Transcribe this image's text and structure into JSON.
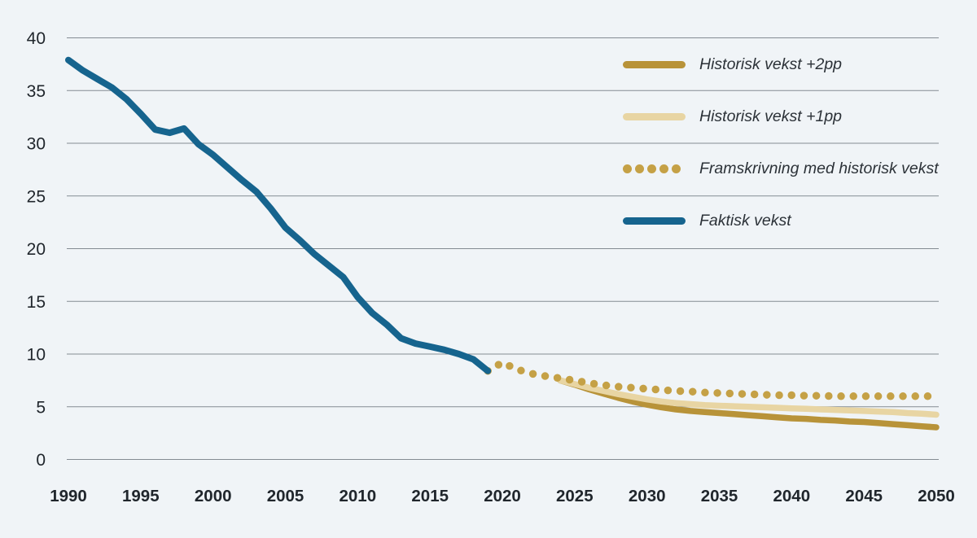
{
  "page": {
    "background_color": "#f0f4f7",
    "gridline_color": "#848c93",
    "axis_label_color": "#20262c"
  },
  "chart_data": {
    "type": "line",
    "title": "",
    "xlabel": "",
    "ylabel": "",
    "xlim": [
      1990,
      2050
    ],
    "ylim": [
      0,
      40
    ],
    "x_ticks": [
      1990,
      1995,
      2000,
      2005,
      2010,
      2015,
      2020,
      2025,
      2030,
      2035,
      2040,
      2045,
      2050
    ],
    "y_ticks": [
      0,
      5,
      10,
      15,
      20,
      25,
      30,
      35,
      40
    ],
    "grid": "horizontal",
    "legend_position": "top-right",
    "series": [
      {
        "name": "Historisk vekst +2pp",
        "style": "solid",
        "color": "#b89339",
        "stroke_width": 7.5,
        "x": [
          2024,
          2025,
          2026,
          2027,
          2028,
          2029,
          2030,
          2031,
          2032,
          2033,
          2034,
          2035,
          2036,
          2037,
          2038,
          2039,
          2040,
          2041,
          2042,
          2043,
          2044,
          2045,
          2046,
          2047,
          2048,
          2049,
          2050
        ],
        "values": [
          7.5,
          7.1,
          6.65,
          6.25,
          5.85,
          5.5,
          5.2,
          4.95,
          4.75,
          4.6,
          4.5,
          4.4,
          4.3,
          4.2,
          4.1,
          4.0,
          3.9,
          3.85,
          3.75,
          3.7,
          3.6,
          3.55,
          3.45,
          3.35,
          3.25,
          3.15,
          3.05
        ]
      },
      {
        "name": "Historisk vekst +1pp",
        "style": "solid",
        "color": "#e8d5a3",
        "stroke_width": 7.5,
        "x": [
          2024,
          2025,
          2026,
          2027,
          2028,
          2029,
          2030,
          2031,
          2032,
          2033,
          2034,
          2035,
          2036,
          2037,
          2038,
          2039,
          2040,
          2041,
          2042,
          2043,
          2044,
          2045,
          2046,
          2047,
          2048,
          2049,
          2050
        ],
        "values": [
          7.5,
          7.15,
          6.8,
          6.5,
          6.2,
          5.95,
          5.7,
          5.5,
          5.35,
          5.25,
          5.15,
          5.1,
          5.05,
          5.0,
          4.95,
          4.9,
          4.85,
          4.8,
          4.75,
          4.7,
          4.65,
          4.6,
          4.55,
          4.5,
          4.4,
          4.35,
          4.25
        ]
      },
      {
        "name": "Framskrivning med historisk vekst",
        "style": "dotted",
        "color": "#c5a146",
        "stroke_width": 9.5,
        "x": [
          2019,
          2020,
          2021,
          2022,
          2023,
          2024,
          2025,
          2026,
          2027,
          2028,
          2029,
          2030,
          2031,
          2032,
          2033,
          2034,
          2035,
          2036,
          2037,
          2038,
          2039,
          2040,
          2041,
          2042,
          2043,
          2044,
          2045,
          2046,
          2047,
          2048,
          2049,
          2050
        ],
        "values": [
          8.4,
          9.2,
          8.55,
          8.15,
          7.9,
          7.7,
          7.5,
          7.25,
          7.05,
          6.9,
          6.8,
          6.7,
          6.6,
          6.5,
          6.45,
          6.35,
          6.3,
          6.25,
          6.2,
          6.15,
          6.1,
          6.1,
          6.05,
          6.05,
          6.0,
          6.0,
          6.0,
          6.0,
          6.0,
          6.0,
          6.0,
          6.0
        ]
      },
      {
        "name": "Faktisk vekst",
        "style": "solid",
        "color": "#16648e",
        "stroke_width": 8,
        "x": [
          1990,
          1991,
          1992,
          1993,
          1994,
          1995,
          1996,
          1997,
          1998,
          1999,
          2000,
          2001,
          2002,
          2003,
          2004,
          2005,
          2006,
          2007,
          2008,
          2009,
          2010,
          2011,
          2012,
          2013,
          2014,
          2015,
          2016,
          2017,
          2018,
          2019
        ],
        "values": [
          37.9,
          36.9,
          36.1,
          35.3,
          34.2,
          32.8,
          31.3,
          31.0,
          31.4,
          29.9,
          28.9,
          27.7,
          26.5,
          25.4,
          23.8,
          22.0,
          20.8,
          19.5,
          18.4,
          17.3,
          15.4,
          13.9,
          12.8,
          11.5,
          11.0,
          10.7,
          10.4,
          10.0,
          9.5,
          8.4
        ]
      }
    ]
  }
}
